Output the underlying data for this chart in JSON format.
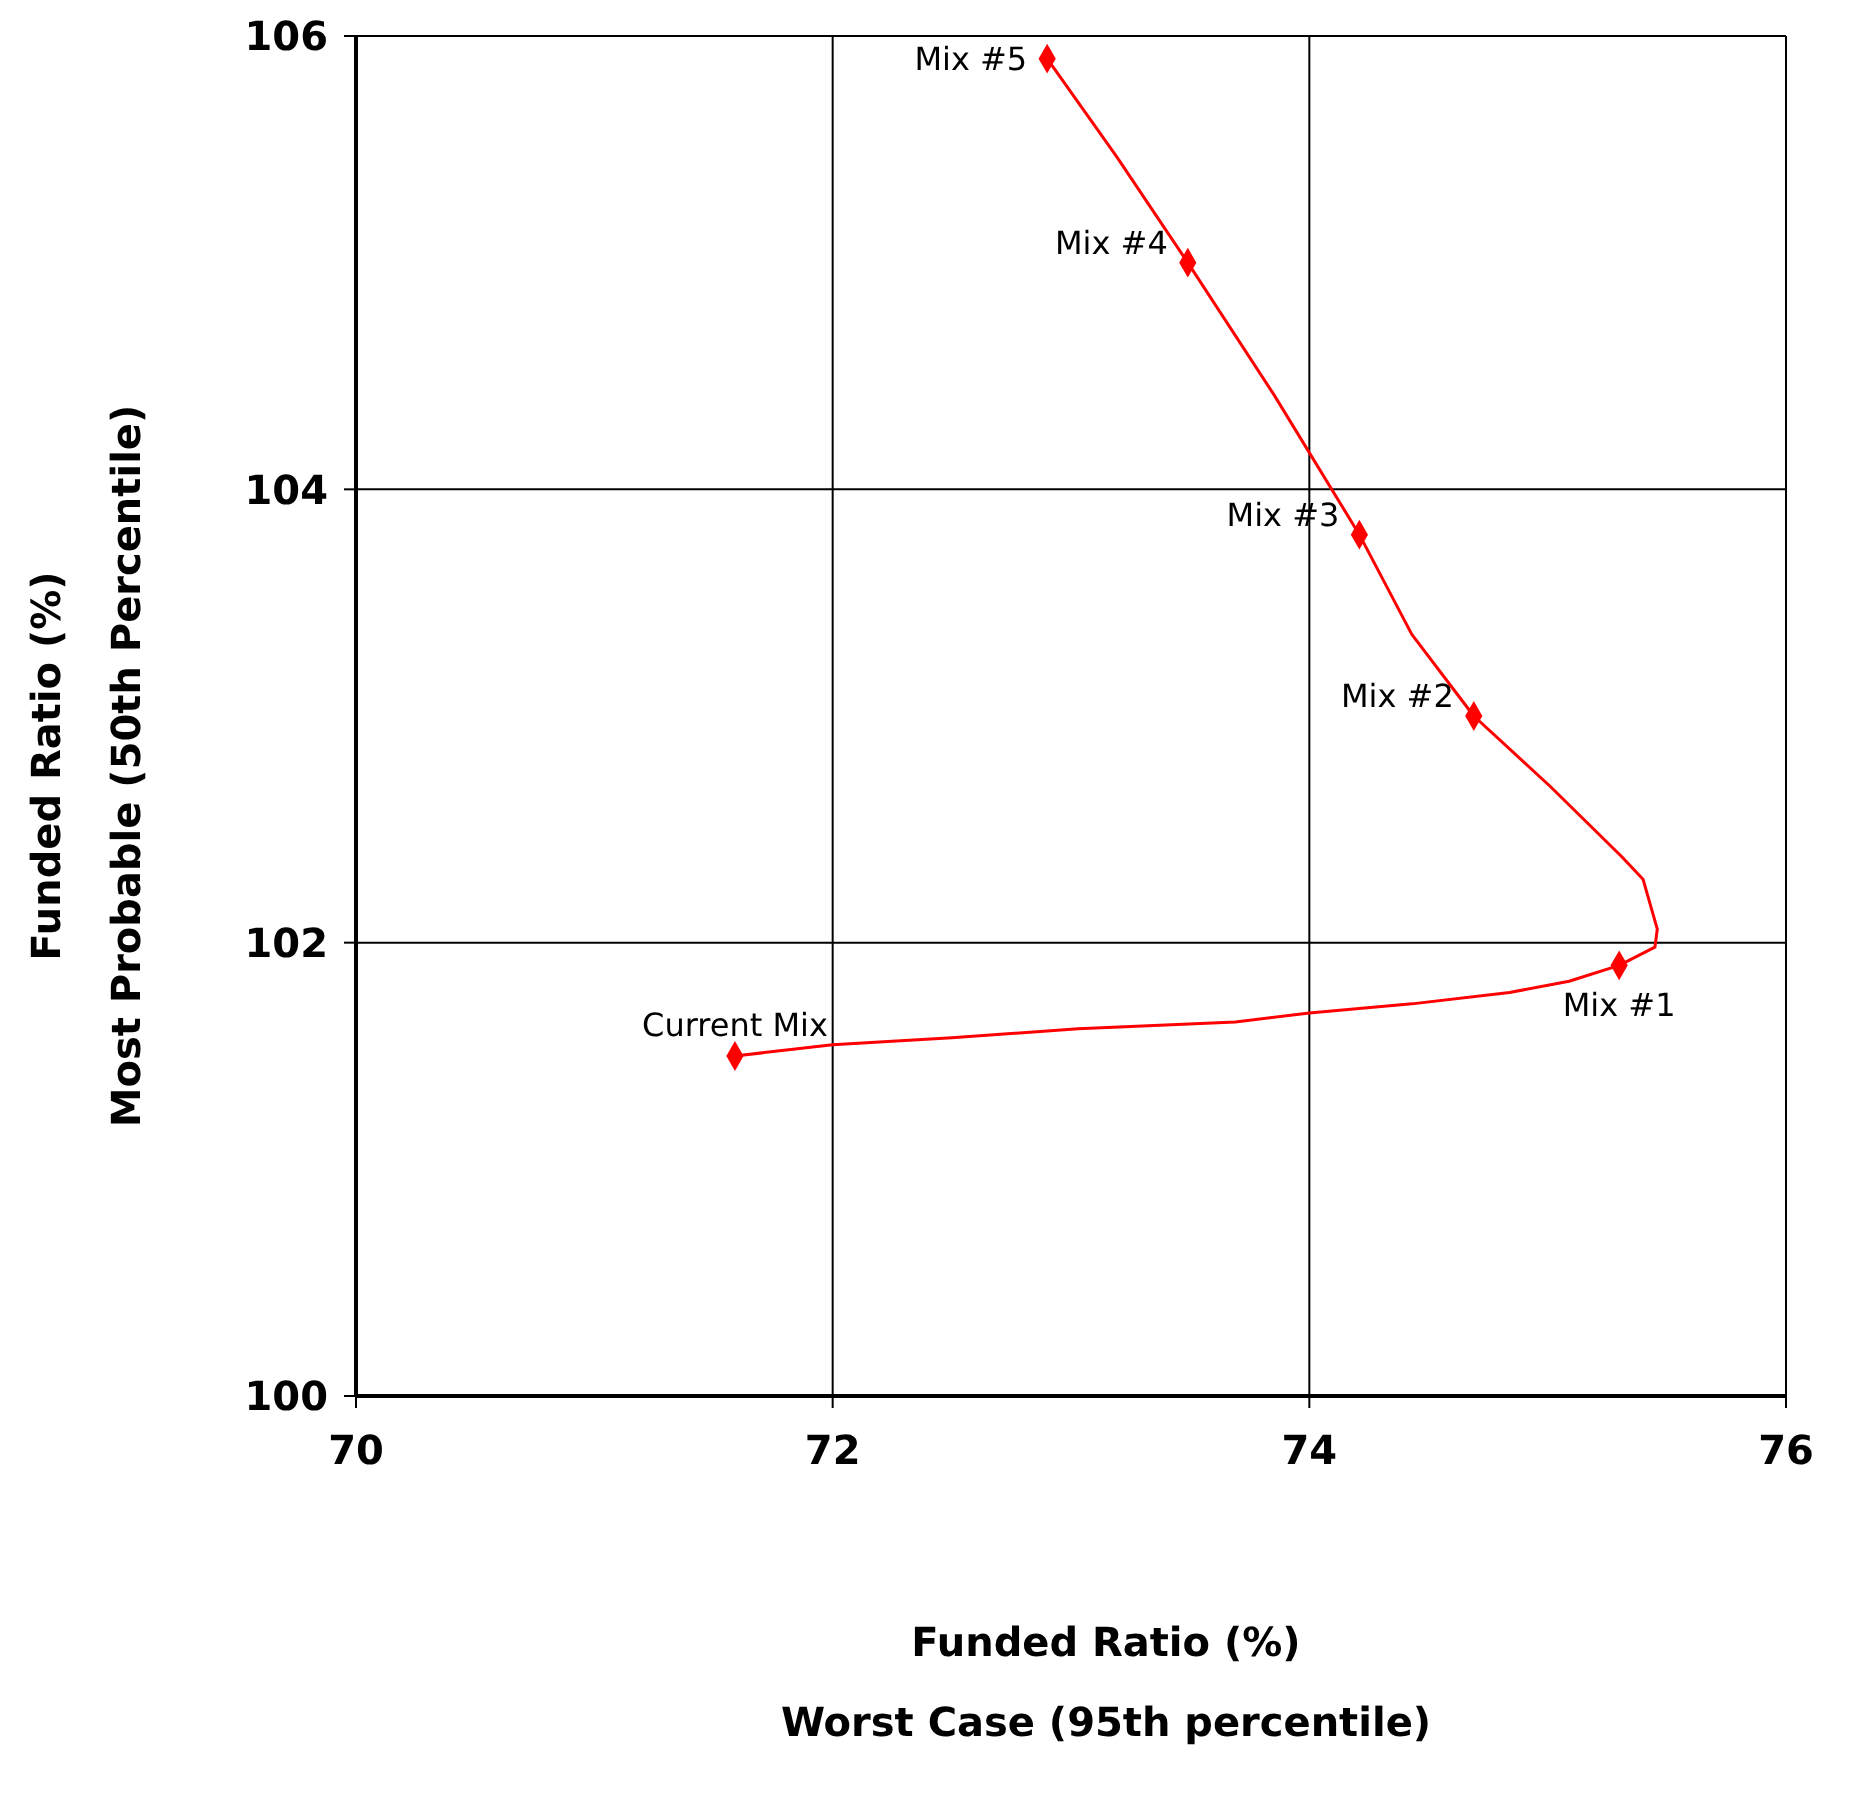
{
  "chart_data": {
    "type": "line",
    "xlabel": "Funded Ratio (%)\nWorst Case (95th percentile)",
    "ylabel": "Funded Ratio (%)\nMost Probable (50th Percentile)",
    "series": [
      {
        "color": "#ff0000",
        "marker": "none",
        "x": [
          71.59,
          72.0,
          72.5,
          73.03,
          73.69,
          74.0,
          74.43,
          74.84,
          75.09,
          75.3,
          75.45,
          75.46,
          75.4,
          75.31,
          75.01,
          74.69,
          74.43,
          74.21,
          73.85,
          73.49,
          73.19,
          72.9
        ],
        "values": [
          101.5,
          101.55,
          101.58,
          101.62,
          101.65,
          101.69,
          101.73,
          101.78,
          101.83,
          101.9,
          101.98,
          102.06,
          102.28,
          102.38,
          102.69,
          103.0,
          103.36,
          103.8,
          104.42,
          105.0,
          105.47,
          105.9
        ]
      },
      {
        "type": "scatter",
        "color": "#ff0000",
        "marker": "diamond",
        "x": [
          71.59,
          75.3,
          74.69,
          74.21,
          73.49,
          72.9
        ],
        "values": [
          101.5,
          101.9,
          103.0,
          103.8,
          105.0,
          105.9
        ]
      }
    ],
    "annotations": [
      {
        "text": "Current Mix",
        "x": 71.59,
        "y": 101.5
      },
      {
        "text": "Mix #1",
        "x": 75.3,
        "y": 101.9
      },
      {
        "text": "Mix #2",
        "x": 74.69,
        "y": 103.0
      },
      {
        "text": "Mix #3",
        "x": 74.21,
        "y": 103.8
      },
      {
        "text": "Mix #4",
        "x": 73.49,
        "y": 105.0
      },
      {
        "text": "Mix #5",
        "x": 72.9,
        "y": 105.9
      }
    ],
    "xlim": [
      70,
      76
    ],
    "xticks": [
      70,
      72,
      74,
      76
    ],
    "ylim": [
      100,
      106
    ],
    "yticks": [
      100,
      102,
      104,
      106
    ],
    "grid": true
  }
}
